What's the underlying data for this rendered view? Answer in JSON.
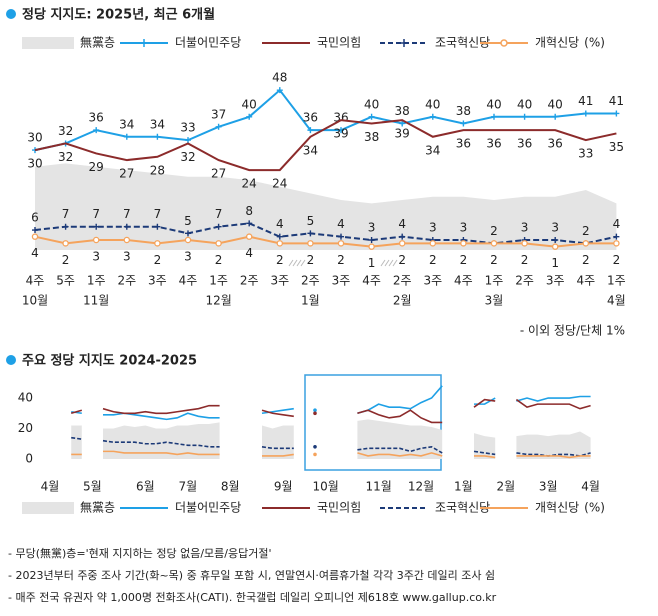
{
  "chart_data": [
    {
      "type": "line",
      "title": "정당 지지도: 2025년, 최근 6개월",
      "categories": [
        "4주",
        "5주",
        "1주",
        "2주",
        "3주",
        "4주",
        "1주",
        "2주",
        "3주",
        "2주",
        "3주",
        "4주",
        "2주",
        "3주",
        "4주",
        "1주",
        "2주",
        "3주",
        "4주",
        "1주"
      ],
      "month_labels": [
        "10월",
        null,
        "11월",
        null,
        null,
        null,
        "12월",
        null,
        null,
        "1월",
        null,
        null,
        "2월",
        null,
        null,
        "3월",
        null,
        null,
        null,
        "4월"
      ],
      "ylim": [
        0,
        50
      ],
      "data_labels": true,
      "unit": "(%)",
      "note": "- 이외 정당/단체 1%",
      "series": [
        {
          "name": "無黨층",
          "type": "area",
          "color": "#e4e4e4",
          "values": [
            25,
            26,
            25,
            24,
            23,
            22,
            22,
            21,
            19,
            17,
            15,
            14,
            15,
            16,
            16,
            15,
            16,
            16,
            18,
            14
          ]
        },
        {
          "name": "더불어민주당",
          "color": "#1ea0e6",
          "marker": "plus",
          "values": [
            30,
            32,
            36,
            34,
            34,
            33,
            37,
            40,
            48,
            36,
            36,
            40,
            38,
            40,
            38,
            40,
            40,
            40,
            41,
            41
          ]
        },
        {
          "name": "국민의힘",
          "color": "#8c2b2b",
          "values": [
            30,
            32,
            29,
            27,
            28,
            32,
            27,
            24,
            24,
            34,
            39,
            38,
            39,
            34,
            36,
            36,
            36,
            36,
            33,
            35
          ]
        },
        {
          "name": "조국혁신당",
          "color": "#1c3a78",
          "dashed": true,
          "marker": "plus",
          "values": [
            6,
            7,
            7,
            7,
            7,
            5,
            7,
            8,
            4,
            5,
            4,
            3,
            4,
            3,
            3,
            2,
            3,
            3,
            2,
            4
          ]
        },
        {
          "name": "개혁신당",
          "color": "#f5a35c",
          "marker": "circle",
          "values": [
            4,
            2,
            3,
            3,
            2,
            3,
            2,
            4,
            2,
            2,
            2,
            1,
            2,
            2,
            2,
            2,
            2,
            1,
            2,
            2
          ]
        }
      ]
    },
    {
      "type": "line",
      "title": "주요 정당 지지도 2024-2025",
      "categories": [
        "4월",
        null,
        null,
        null,
        "5월",
        null,
        null,
        null,
        null,
        "6월",
        null,
        null,
        null,
        "7월",
        null,
        null,
        null,
        "8월",
        null,
        null,
        null,
        null,
        "9월",
        null,
        null,
        null,
        "10월",
        null,
        null,
        null,
        null,
        "11월",
        null,
        null,
        null,
        "12월",
        null,
        null,
        null,
        "1월",
        null,
        null,
        null,
        "2월",
        null,
        null,
        null,
        "3월",
        null,
        null,
        null,
        "4월"
      ],
      "ylim": [
        0,
        45
      ],
      "yticks": [
        0,
        20,
        40
      ],
      "data_labels": false,
      "unit": "(%)",
      "series": [
        {
          "name": "無黨층",
          "type": "area",
          "color": "#e4e4e4",
          "values": [
            null,
            null,
            22,
            22,
            null,
            20,
            20,
            22,
            21,
            22,
            20,
            20,
            22,
            22,
            23,
            23,
            24,
            null,
            null,
            null,
            22,
            20,
            22,
            22,
            null,
            22,
            null,
            null,
            null,
            25,
            26,
            25,
            24,
            23,
            22,
            22,
            21,
            19,
            null,
            null,
            17,
            15,
            14,
            null,
            15,
            16,
            16,
            15,
            16,
            16,
            18,
            14
          ]
        },
        {
          "name": "더불어민주당",
          "color": "#1ea0e6",
          "values": [
            null,
            null,
            31,
            30,
            null,
            29,
            29,
            30,
            29,
            28,
            27,
            26,
            27,
            30,
            28,
            27,
            27,
            null,
            null,
            null,
            30,
            31,
            32,
            33,
            null,
            32,
            null,
            null,
            null,
            30,
            32,
            36,
            34,
            34,
            33,
            37,
            40,
            48,
            null,
            null,
            36,
            36,
            40,
            null,
            38,
            40,
            38,
            40,
            40,
            40,
            41,
            41
          ]
        },
        {
          "name": "국민의힘",
          "color": "#8c2b2b",
          "values": [
            null,
            null,
            30,
            32,
            null,
            33,
            31,
            30,
            30,
            31,
            30,
            30,
            31,
            32,
            33,
            35,
            35,
            null,
            null,
            null,
            32,
            30,
            29,
            28,
            null,
            30,
            null,
            null,
            null,
            30,
            32,
            29,
            27,
            28,
            32,
            27,
            24,
            24,
            null,
            null,
            34,
            39,
            38,
            null,
            39,
            34,
            36,
            36,
            36,
            36,
            33,
            35
          ]
        },
        {
          "name": "조국혁신당",
          "color": "#1c3a78",
          "dashed": true,
          "values": [
            null,
            null,
            14,
            13,
            null,
            12,
            11,
            11,
            11,
            10,
            10,
            11,
            10,
            9,
            9,
            8,
            8,
            null,
            null,
            null,
            8,
            7,
            7,
            7,
            null,
            8,
            null,
            null,
            null,
            6,
            7,
            7,
            7,
            7,
            5,
            7,
            8,
            4,
            null,
            null,
            5,
            4,
            3,
            null,
            4,
            3,
            3,
            2,
            3,
            3,
            2,
            4
          ]
        },
        {
          "name": "개혁신당",
          "color": "#f5a35c",
          "values": [
            null,
            null,
            3,
            3,
            null,
            5,
            5,
            4,
            4,
            4,
            4,
            4,
            3,
            4,
            3,
            3,
            3,
            null,
            null,
            null,
            2,
            2,
            2,
            3,
            null,
            3,
            null,
            null,
            null,
            4,
            2,
            3,
            3,
            2,
            3,
            2,
            4,
            2,
            null,
            null,
            2,
            2,
            1,
            null,
            2,
            2,
            2,
            2,
            2,
            1,
            2,
            2
          ]
        }
      ]
    }
  ],
  "footnotes": [
    "- 무당(無黨)층='현재 지지하는 정당 없음/모름/응답거절'",
    "- 2023년부터 주중 조사 기간(화~목) 중 휴무일 포함 시, 연말연시·여름휴가철 각각 3주간 데일리 조사 쉼",
    "- 매주 전국 유권자 약 1,000명 전화조사(CATI). 한국갤럽 데일리 오피니언 제618호 www.gallup.co.kr"
  ]
}
